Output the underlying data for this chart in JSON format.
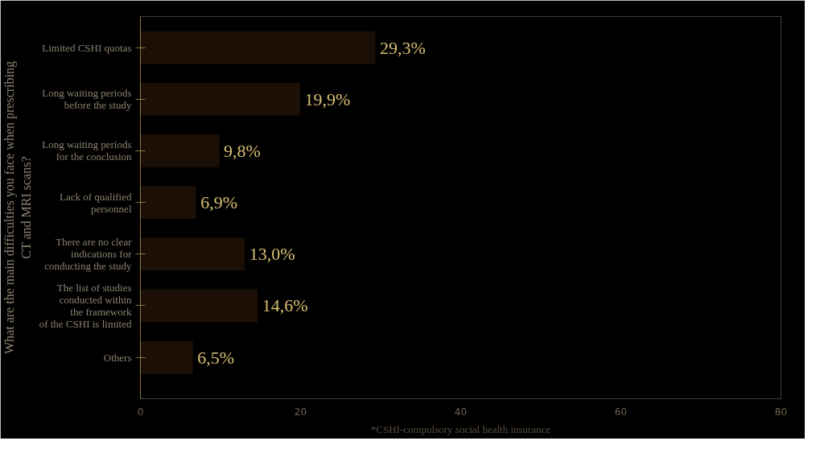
{
  "chart_data": {
    "type": "bar",
    "orientation": "horizontal",
    "ylabel": "What are the main difficulties you face when prescribing\nCT and MRI scans?",
    "categories": [
      "Limited CSHI quotas",
      "Long waiting periods\nbefore the study",
      "Long waiting periods\nfor the conclusion",
      "Lack of qualified\npersonnel",
      "There are no clear\nindications for\nconducting the study",
      "The list of studies\nconducted within\nthe framework\nof the CSHI is limited",
      "Others"
    ],
    "values": [
      29.3,
      19.9,
      9.8,
      6.9,
      13.0,
      14.6,
      6.5
    ],
    "value_labels": [
      "29,3%",
      "19,9%",
      "9,8%",
      "6,9%",
      "13,0%",
      "14,6%",
      "6,5%"
    ],
    "color": "#1c1006",
    "xlim": [
      0,
      80
    ],
    "xticks": [
      0,
      20,
      40,
      60,
      80
    ],
    "annotations": [
      "*CSHI-compulsory social health insurance"
    ]
  }
}
